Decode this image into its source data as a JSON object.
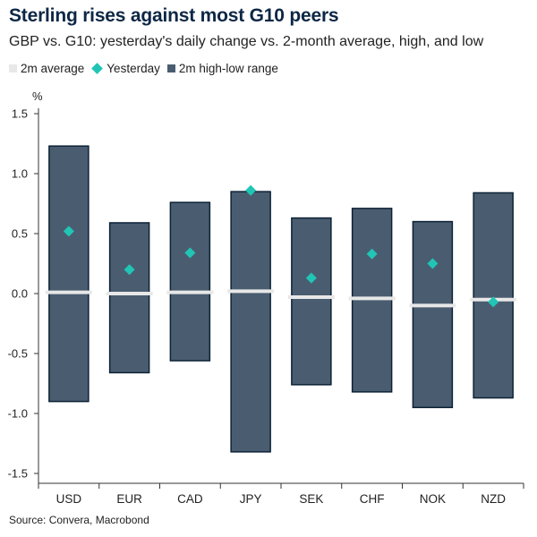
{
  "header": {
    "title": "Sterling rises against most G10 peers",
    "subtitle": "GBP vs. G10: yesterday's daily change vs. 2-month average, high, and low"
  },
  "footer": {
    "source": "Source: Convera, Macrobond"
  },
  "colors": {
    "range": "#4a5d70",
    "range_border": "#0d2236",
    "average": "#e8e8e8",
    "yesterday": "#20c5b5",
    "axis": "#333333"
  },
  "chart_data": {
    "type": "bar",
    "title": "Sterling rises against most G10 peers",
    "subtitle": "GBP vs. G10: yesterday's daily change vs. 2-month average, high, and low",
    "ylabel": "%",
    "ylim": [
      -1.5,
      1.5
    ],
    "yticks": [
      1.5,
      1.0,
      0.5,
      0.0,
      -0.5,
      -1.0,
      -1.5
    ],
    "ytick_labels": [
      "1.5",
      "1.0",
      "0.5",
      "0.0",
      "-0.5",
      "-1.0",
      "-1.5"
    ],
    "legend_position": "top-left",
    "grid": false,
    "categories": [
      "USD",
      "EUR",
      "CAD",
      "JPY",
      "SEK",
      "CHF",
      "NOK",
      "NZD"
    ],
    "series": [
      {
        "name": "2m average",
        "values": [
          0.01,
          0.0,
          0.01,
          0.02,
          -0.03,
          -0.04,
          -0.1,
          -0.05
        ]
      },
      {
        "name": "Yesterday",
        "values": [
          0.52,
          0.2,
          0.34,
          0.86,
          0.13,
          0.33,
          0.25,
          -0.07
        ]
      },
      {
        "name": "2m high-low range",
        "high": [
          1.23,
          0.59,
          0.76,
          0.85,
          0.63,
          0.71,
          0.6,
          0.84
        ],
        "low": [
          -0.9,
          -0.66,
          -0.56,
          -1.32,
          -0.76,
          -0.82,
          -0.95,
          -0.87
        ]
      }
    ]
  }
}
